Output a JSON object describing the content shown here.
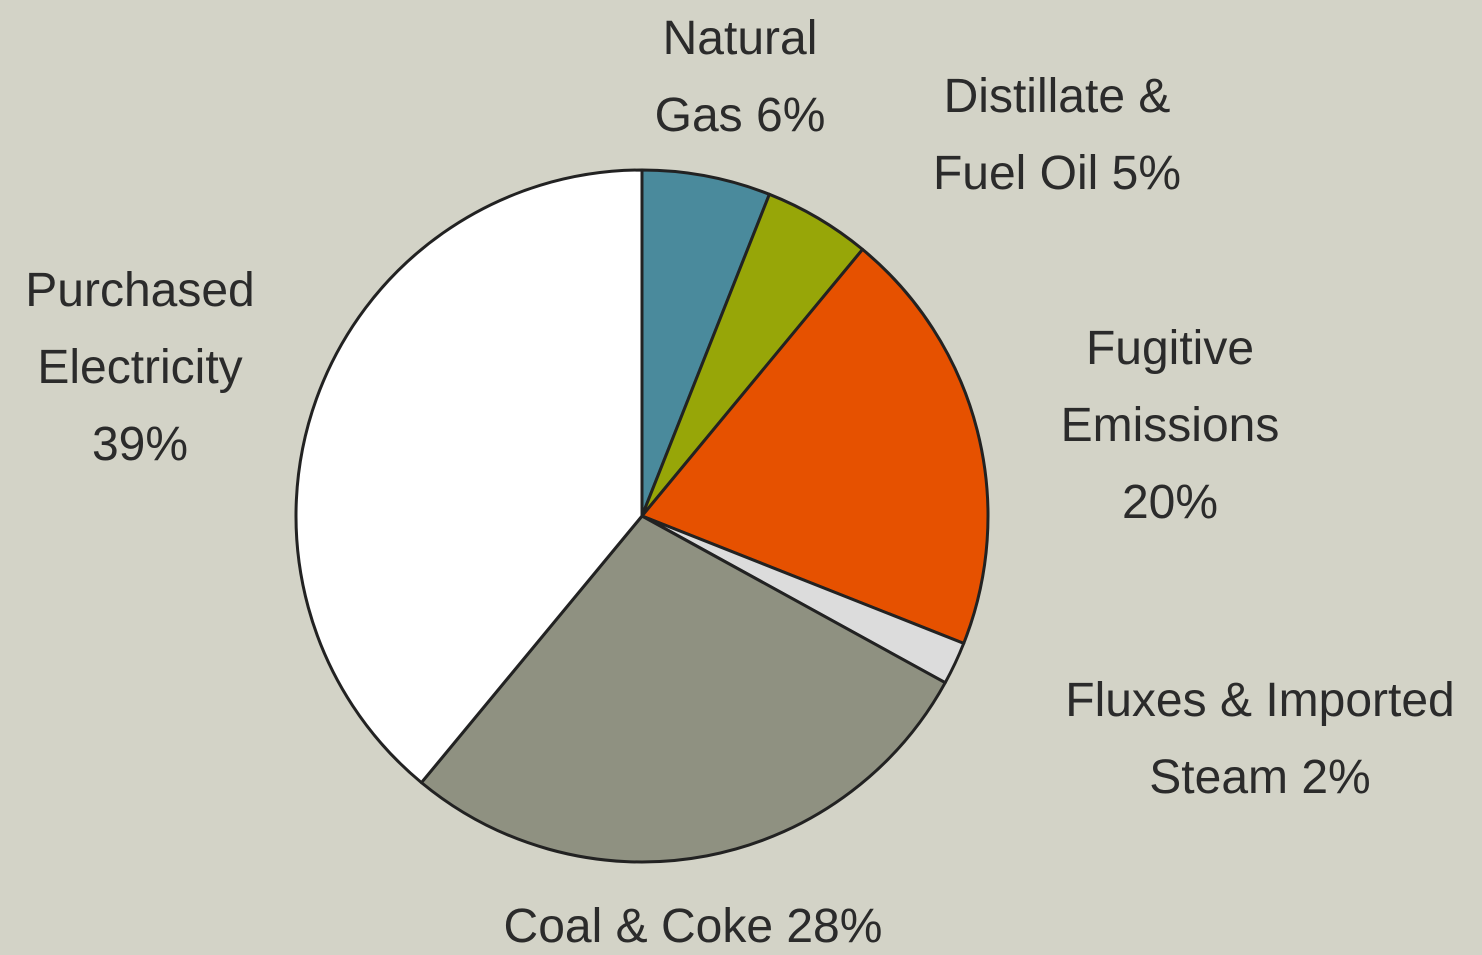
{
  "chart_data": {
    "type": "pie",
    "categories": [
      "Natural Gas",
      "Distillate & Fuel Oil",
      "Fugitive Emissions",
      "Fluxes & Imported Steam",
      "Coal & Coke",
      "Purchased Electricity"
    ],
    "values": [
      6,
      5,
      20,
      2,
      28,
      39
    ],
    "value_labels": [
      "6%",
      "5%",
      "20%",
      "2%",
      "28%",
      "39%"
    ],
    "colors": [
      "#4a8a9c",
      "#97a608",
      "#e65100",
      "#dcdcdc",
      "#8f9181",
      "#ffffff"
    ]
  }
}
